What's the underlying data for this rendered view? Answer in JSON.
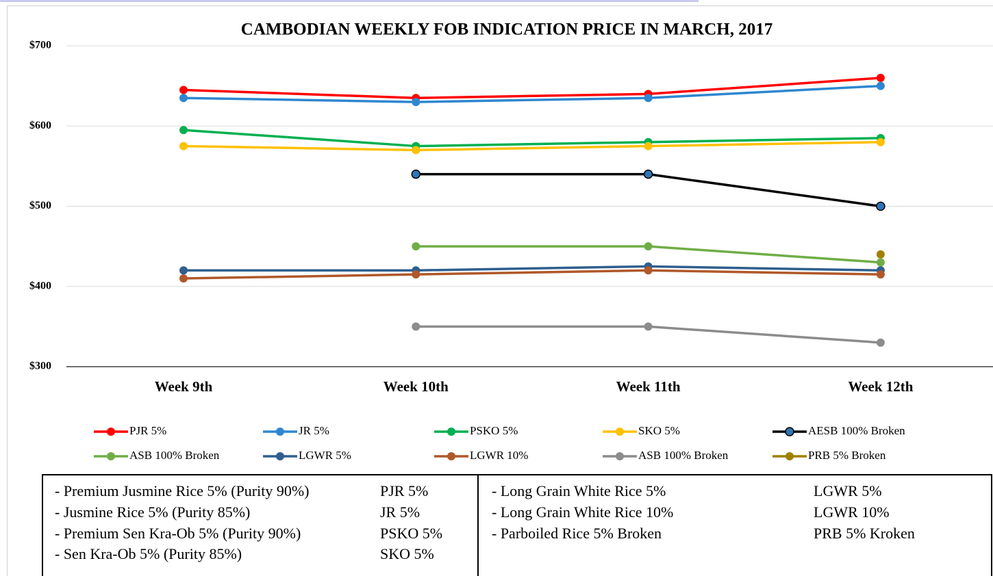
{
  "chart_data": {
    "type": "line",
    "title": "CAMBODIAN WEEKLY FOB INDICATION PRICE IN MARCH, 2017",
    "categories": [
      "Week 9th",
      "Week 10th",
      "Week 11th",
      "Week 12th"
    ],
    "ylim": [
      300,
      700
    ],
    "yticks": [
      {
        "value": 300,
        "label": "$300"
      },
      {
        "value": 400,
        "label": "$400"
      },
      {
        "value": 500,
        "label": "$500"
      },
      {
        "value": 600,
        "label": "$600"
      },
      {
        "value": 700,
        "label": "$700"
      }
    ],
    "grid": true,
    "legend": "bottom",
    "series": [
      {
        "name": "PJR 5%",
        "color": "#ff0000",
        "values": [
          645,
          635,
          640,
          660
        ]
      },
      {
        "name": "JR 5%",
        "color": "#2e87d0",
        "values": [
          635,
          630,
          635,
          650
        ]
      },
      {
        "name": "PSKO 5%",
        "color": "#00b050",
        "values": [
          595,
          575,
          580,
          585
        ]
      },
      {
        "name": "SKO 5%",
        "color": "#ffc000",
        "values": [
          575,
          570,
          575,
          580
        ]
      },
      {
        "name": "AESB 100% Broken",
        "color": "#000000",
        "marker_color": "#2e75b6",
        "values": [
          null,
          540,
          540,
          500
        ]
      },
      {
        "name": "ASB 100% Broken",
        "color": "#70ad47",
        "values": [
          null,
          450,
          450,
          430
        ]
      },
      {
        "name": "LGWR 5%",
        "color": "#2f5f8f",
        "values": [
          420,
          420,
          425,
          420
        ]
      },
      {
        "name": "LGWR 10%",
        "color": "#b0582a",
        "values": [
          410,
          415,
          420,
          415
        ]
      },
      {
        "name": "ASB 100% Broken",
        "color": "#8c8c8c",
        "values": [
          null,
          350,
          350,
          330
        ]
      },
      {
        "name": "PRB 5% Broken",
        "color": "#a08000",
        "values": [
          null,
          null,
          null,
          440
        ]
      }
    ]
  },
  "glossary": {
    "left": [
      [
        "- Premium Jusmine Rice 5% (Purity 90%)",
        "PJR 5%"
      ],
      [
        "- Jusmine Rice 5% (Purity 85%)",
        "JR 5%"
      ],
      [
        "- Premium Sen Kra-Ob 5% (Purity 90%)",
        "PSKO 5%"
      ],
      [
        "- Sen Kra-Ob 5% (Purity 85%)",
        "SKO 5%"
      ]
    ],
    "right": [
      [
        "- Long Grain White Rice 5%",
        "LGWR 5%"
      ],
      [
        "- Long Grain White Rice 10%",
        "LGWR 10%"
      ],
      [
        "- Parboiled Rice 5% Broken",
        "PRB 5% Kroken"
      ]
    ]
  }
}
